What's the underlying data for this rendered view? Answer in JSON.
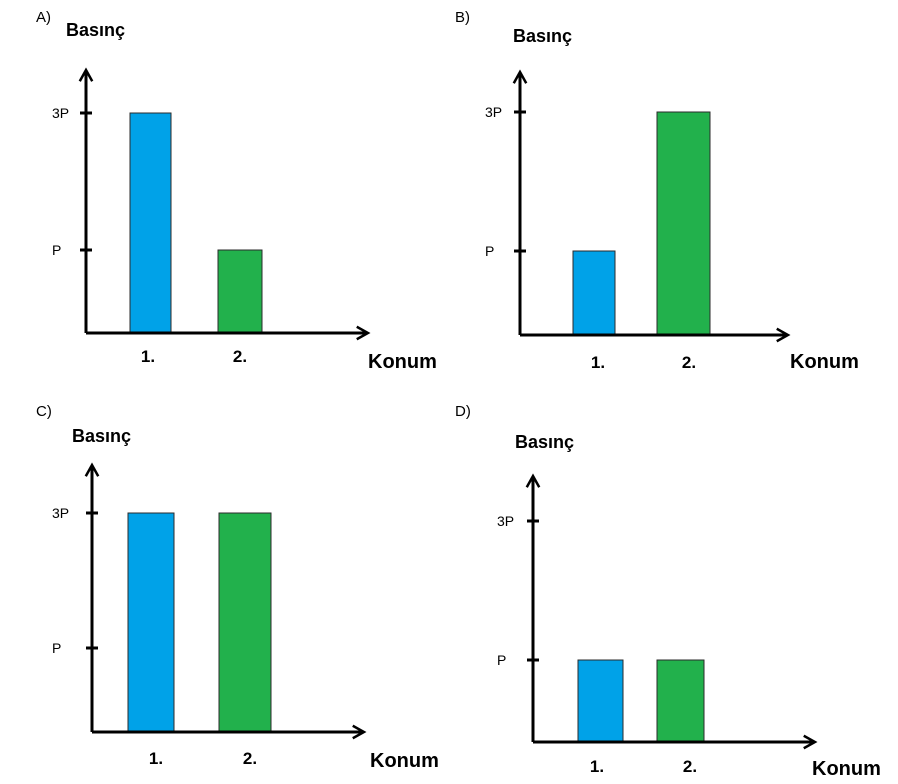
{
  "colors": {
    "series1": "#00a2e8",
    "series2": "#22b14c",
    "axis": "#000000"
  },
  "chart_data": [
    {
      "type": "bar",
      "panel": "A)",
      "ylabel": "Basınç",
      "xlabel": "Konum",
      "categories": [
        "1.",
        "2."
      ],
      "values": [
        3,
        1
      ],
      "yticks": [
        "P",
        "3P"
      ],
      "ytick_values": [
        1,
        3
      ]
    },
    {
      "type": "bar",
      "panel": "B)",
      "ylabel": "Basınç",
      "xlabel": "Konum",
      "categories": [
        "1.",
        "2."
      ],
      "values": [
        1,
        3
      ],
      "yticks": [
        "P",
        "3P"
      ],
      "ytick_values": [
        1,
        3
      ]
    },
    {
      "type": "bar",
      "panel": "C)",
      "ylabel": "Basınç",
      "xlabel": "Konum",
      "categories": [
        "1.",
        "2."
      ],
      "values": [
        3,
        3
      ],
      "yticks": [
        "P",
        "3P"
      ],
      "ytick_values": [
        1,
        3
      ]
    },
    {
      "type": "bar",
      "panel": "D)",
      "ylabel": "Basınç",
      "xlabel": "Konum",
      "categories": [
        "1.",
        "2."
      ],
      "values": [
        1,
        1
      ],
      "yticks": [
        "P",
        "3P"
      ],
      "ytick_values": [
        1,
        3
      ]
    }
  ]
}
